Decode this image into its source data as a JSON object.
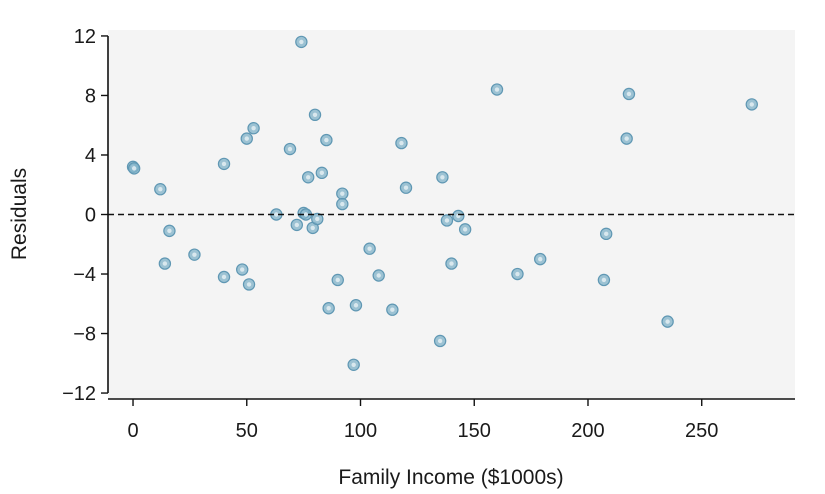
{
  "chart_data": {
    "type": "scatter",
    "title": "",
    "xlabel": "Family Income ($1000s)",
    "ylabel": "Residuals",
    "xlim": [
      -11,
      291
    ],
    "ylim": [
      -12.4,
      12.4
    ],
    "x_ticks": [
      0,
      50,
      100,
      150,
      200,
      250
    ],
    "x_tick_labels": [
      "0",
      "50",
      "100",
      "150",
      "200",
      "250"
    ],
    "y_ticks": [
      -12,
      -8,
      -4,
      0,
      4,
      8,
      12
    ],
    "y_tick_labels": [
      "−12",
      "−8",
      "−4",
      "0",
      "4",
      "8",
      "12"
    ],
    "reference_line": {
      "y": 0,
      "style": "dashed"
    },
    "plot_background": "#f4f4f4",
    "point_color": "#7fb2c8",
    "point_edge_color": "#5f97b3",
    "grid": false,
    "legend": "none",
    "points": [
      {
        "x": 0,
        "y": 3.2
      },
      {
        "x": 0.5,
        "y": 3.1
      },
      {
        "x": 12,
        "y": 1.7
      },
      {
        "x": 14,
        "y": -3.3
      },
      {
        "x": 16,
        "y": -1.1
      },
      {
        "x": 27,
        "y": -2.7
      },
      {
        "x": 40,
        "y": 3.4
      },
      {
        "x": 40,
        "y": -4.2
      },
      {
        "x": 48,
        "y": -3.7
      },
      {
        "x": 50,
        "y": 5.1
      },
      {
        "x": 51,
        "y": -4.7
      },
      {
        "x": 53,
        "y": 5.8
      },
      {
        "x": 63,
        "y": 0.0
      },
      {
        "x": 69,
        "y": 4.4
      },
      {
        "x": 72,
        "y": -0.7
      },
      {
        "x": 74,
        "y": 11.6
      },
      {
        "x": 75,
        "y": 0.1
      },
      {
        "x": 76,
        "y": 0.0
      },
      {
        "x": 77,
        "y": 2.5
      },
      {
        "x": 79,
        "y": -0.9
      },
      {
        "x": 80,
        "y": 6.7
      },
      {
        "x": 81,
        "y": -0.3
      },
      {
        "x": 83,
        "y": 2.8
      },
      {
        "x": 85,
        "y": 5.0
      },
      {
        "x": 86,
        "y": -6.3
      },
      {
        "x": 90,
        "y": -4.4
      },
      {
        "x": 92,
        "y": 1.4
      },
      {
        "x": 92,
        "y": 0.7
      },
      {
        "x": 97,
        "y": -10.1
      },
      {
        "x": 98,
        "y": -6.1
      },
      {
        "x": 104,
        "y": -2.3
      },
      {
        "x": 108,
        "y": -4.1
      },
      {
        "x": 114,
        "y": -6.4
      },
      {
        "x": 118,
        "y": 4.8
      },
      {
        "x": 120,
        "y": 1.8
      },
      {
        "x": 135,
        "y": -8.5
      },
      {
        "x": 136,
        "y": 2.5
      },
      {
        "x": 138,
        "y": -0.4
      },
      {
        "x": 140,
        "y": -3.3
      },
      {
        "x": 143,
        "y": -0.1
      },
      {
        "x": 146,
        "y": -1.0
      },
      {
        "x": 160,
        "y": 8.4
      },
      {
        "x": 169,
        "y": -4.0
      },
      {
        "x": 179,
        "y": -3.0
      },
      {
        "x": 207,
        "y": -4.4
      },
      {
        "x": 208,
        "y": -1.3
      },
      {
        "x": 217,
        "y": 5.1
      },
      {
        "x": 218,
        "y": 8.1
      },
      {
        "x": 235,
        "y": -7.2
      },
      {
        "x": 272,
        "y": 7.4
      }
    ]
  }
}
